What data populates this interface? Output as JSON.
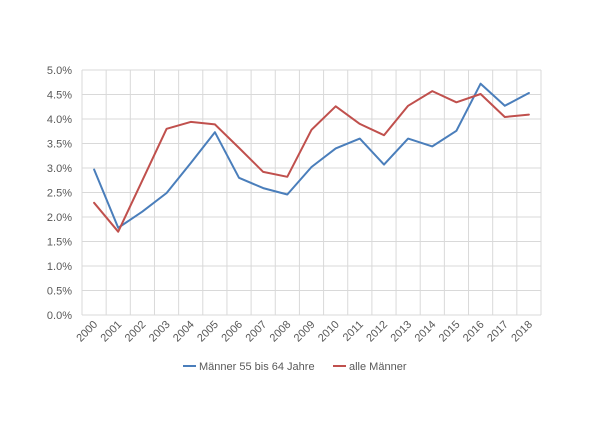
{
  "chart_data": {
    "type": "line",
    "title": "",
    "xlabel": "",
    "ylabel": "",
    "categories": [
      "2000",
      "2001",
      "2002",
      "2003",
      "2004",
      "2005",
      "2006",
      "2007",
      "2008",
      "2009",
      "2010",
      "2011",
      "2012",
      "2013",
      "2014",
      "2015",
      "2016",
      "2017",
      "2018"
    ],
    "ylim": [
      0,
      0.05
    ],
    "y_ticks": [
      "0.0%",
      "0.5%",
      "1.0%",
      "1.5%",
      "2.0%",
      "2.5%",
      "3.0%",
      "3.5%",
      "4.0%",
      "4.5%",
      "5.0%"
    ],
    "grid": true,
    "legend_position": "bottom",
    "series": [
      {
        "name": "Männer 55 bis 64 Jahre",
        "color": "#4a7ebb",
        "values": [
          0.0297,
          0.0178,
          0.0211,
          0.0249,
          0.031,
          0.0373,
          0.028,
          0.0259,
          0.0246,
          0.0302,
          0.034,
          0.036,
          0.0307,
          0.036,
          0.0344,
          0.0376,
          0.0472,
          0.0427,
          0.0453
        ]
      },
      {
        "name": "alle Männer",
        "color": "#c0504d",
        "values": [
          0.0229,
          0.017,
          0.0275,
          0.038,
          0.0394,
          0.0389,
          0.0341,
          0.0292,
          0.0282,
          0.0378,
          0.0426,
          0.039,
          0.0367,
          0.0427,
          0.0457,
          0.0434,
          0.0451,
          0.0404,
          0.0409
        ]
      }
    ]
  }
}
